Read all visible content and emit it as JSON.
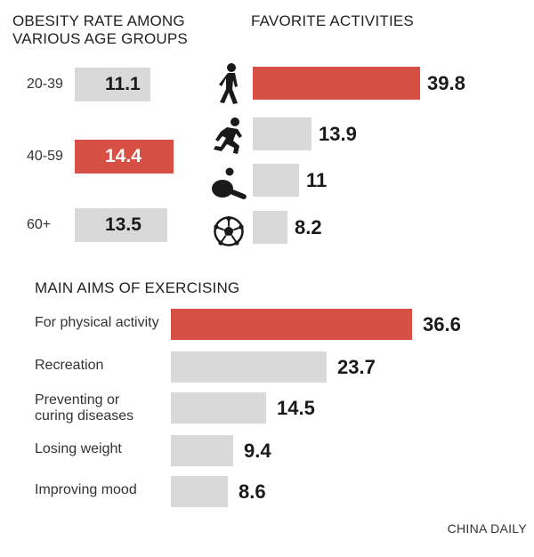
{
  "chart_data": [
    {
      "type": "bar",
      "title": "OBESITY RATE AMONG VARIOUS AGE GROUPS",
      "categories": [
        "20-39",
        "40-59",
        "60+"
      ],
      "values": [
        11.1,
        14.4,
        13.5
      ],
      "highlight": [
        false,
        true,
        false
      ]
    },
    {
      "type": "bar",
      "title": "FAVORITE ACTIVITIES",
      "icons": [
        "walking-icon",
        "running-icon",
        "table-tennis-icon",
        "soccer-ball-icon"
      ],
      "values": [
        39.8,
        13.9,
        11,
        8.2
      ],
      "labels": [
        "39.8",
        "13.9",
        "11",
        "8.2"
      ],
      "highlight": [
        true,
        false,
        false,
        false
      ]
    },
    {
      "type": "bar",
      "title": "MAIN AIMS OF EXERCISING",
      "categories": [
        "For physical activity",
        "Recreation",
        "Preventing or curing diseases",
        "Losing weight",
        "Improving mood"
      ],
      "category_lines": [
        [
          "For physical activity"
        ],
        [
          "Recreation"
        ],
        [
          "Preventing or",
          "curing diseases"
        ],
        [
          "Losing weight"
        ],
        [
          "Improving mood"
        ]
      ],
      "values": [
        36.6,
        23.7,
        14.5,
        9.4,
        8.6
      ],
      "highlight": [
        true,
        false,
        false,
        false,
        false
      ]
    }
  ],
  "source": "CHINA DAILY",
  "colors": {
    "highlight": "#d65043",
    "bar": "#d9d9d9",
    "text": "#1a1a1a"
  }
}
